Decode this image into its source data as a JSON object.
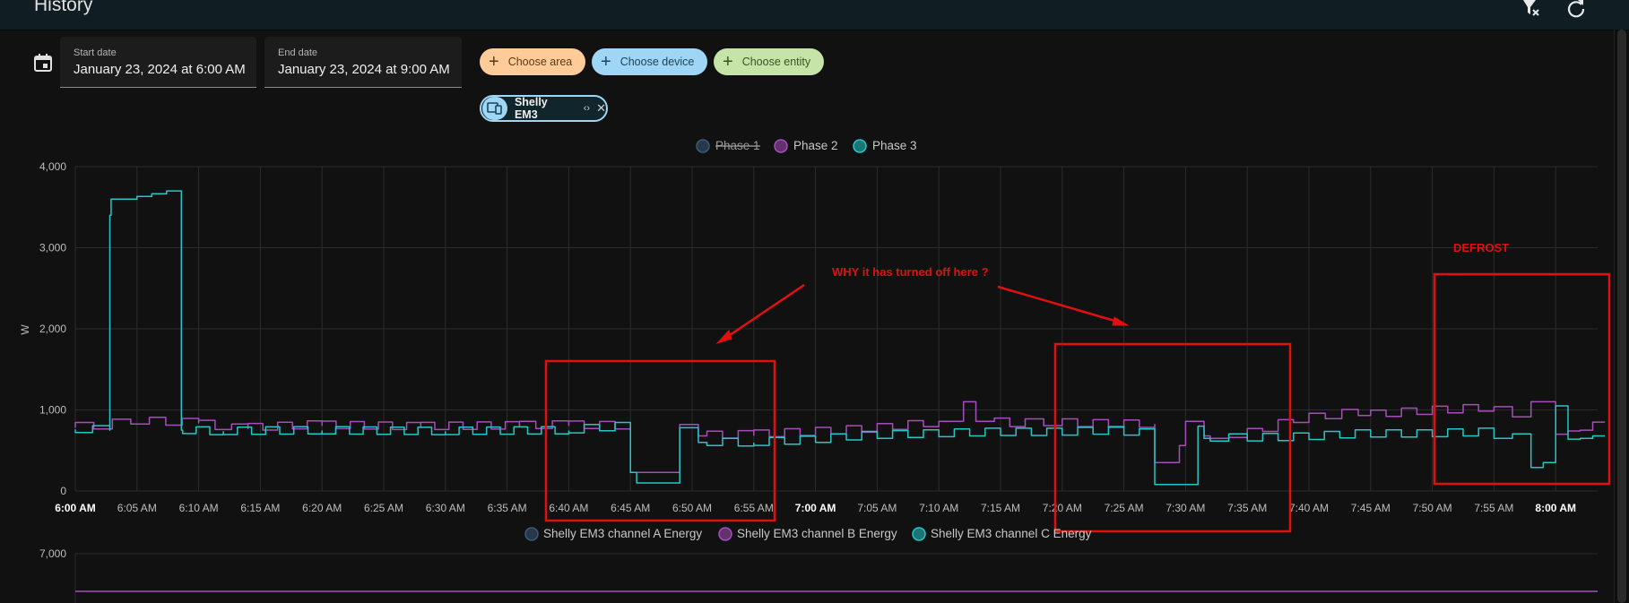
{
  "header": {
    "title": "History"
  },
  "toolbar": {
    "icons": [
      "filter-remove-icon",
      "refresh-icon"
    ]
  },
  "start_date": {
    "label": "Start date",
    "value": "January 23, 2024 at 6:00 AM"
  },
  "end_date": {
    "label": "End date",
    "value": "January 23, 2024 at 9:00 AM"
  },
  "pickers": {
    "area": "Choose area",
    "device": "Choose device",
    "entity": "Choose entity"
  },
  "selected_device": {
    "name": "Shelly EM3"
  },
  "colors": {
    "phase1": "#3b5a7a",
    "phase2": "#a64dbb",
    "phase3": "#26c6c6",
    "annotation": "#e01010",
    "grid": "#2c2c2c"
  },
  "chart_data": [
    {
      "type": "line",
      "legend": [
        {
          "name": "Phase 1",
          "hidden": true
        },
        {
          "name": "Phase 2",
          "hidden": false
        },
        {
          "name": "Phase 3",
          "hidden": false
        }
      ],
      "ylabel": "W",
      "ylim": [
        0,
        4000
      ],
      "yticks": [
        "0",
        "1,000",
        "2,000",
        "3,000",
        "4,000"
      ],
      "xticks": [
        "6:00 AM",
        "6:05 AM",
        "6:10 AM",
        "6:15 AM",
        "6:20 AM",
        "6:25 AM",
        "6:30 AM",
        "6:35 AM",
        "6:40 AM",
        "6:45 AM",
        "6:50 AM",
        "6:55 AM",
        "7:00 AM",
        "7:05 AM",
        "7:10 AM",
        "7:15 AM",
        "7:20 AM",
        "7:25 AM",
        "7:30 AM",
        "7:35 AM",
        "7:40 AM",
        "7:45 AM",
        "7:50 AM",
        "7:55 AM",
        "8:00 AM"
      ],
      "bold_ticks": [
        "6:00 AM",
        "7:00 AM",
        "8:00 AM"
      ],
      "xlim_minutes": [
        0,
        124
      ],
      "series": [
        {
          "name": "Phase 2",
          "color": "#a64dbb",
          "minutes": [
            0,
            3,
            6,
            10,
            14,
            20,
            28,
            36,
            40,
            45,
            45.5,
            49,
            50.5,
            51.2,
            55,
            60,
            65,
            70,
            72,
            73,
            74.5,
            77,
            80,
            85,
            87.5,
            88,
            89.5,
            90,
            91.5,
            92,
            93.5,
            95,
            100,
            104,
            105,
            110,
            115,
            118,
            120,
            121,
            122,
            123,
            124
          ],
          "values": [
            780,
            800,
            860,
            840,
            770,
            810,
            790,
            800,
            810,
            800,
            230,
            230,
            820,
            680,
            690,
            720,
            760,
            830,
            860,
            1100,
            860,
            830,
            840,
            820,
            820,
            350,
            350,
            560,
            860,
            680,
            650,
            660,
            880,
            950,
            930,
            980,
            1020,
            950,
            1100,
            700,
            740,
            750,
            850
          ]
        },
        {
          "name": "Phase 3",
          "color": "#26c6c6",
          "minutes": [
            0,
            2.8,
            2.9,
            5,
            8.6,
            8.7,
            12,
            20,
            30,
            40,
            45,
            45.5,
            46.5,
            49,
            50.5,
            51.2,
            55,
            60,
            65,
            70,
            75,
            80,
            85,
            87.5,
            88,
            91,
            91.5,
            92,
            95,
            100,
            105,
            110,
            115,
            118,
            119,
            120,
            121,
            122,
            123,
            124
          ],
          "values": [
            760,
            750,
            3400,
            3600,
            3700,
            750,
            730,
            740,
            730,
            740,
            790,
            230,
            100,
            100,
            780,
            600,
            590,
            620,
            680,
            700,
            720,
            720,
            740,
            710,
            80,
            80,
            800,
            650,
            650,
            660,
            700,
            700,
            720,
            650,
            290,
            350,
            1050,
            640,
            650,
            680
          ]
        }
      ],
      "annotations": [
        {
          "text": "WHY it has turned off here ?"
        },
        {
          "text": "DEFROST"
        }
      ]
    },
    {
      "type": "line",
      "legend": [
        {
          "name": "Shelly EM3 channel A Energy"
        },
        {
          "name": "Shelly EM3 channel B Energy"
        },
        {
          "name": "Shelly EM3 channel C Energy"
        }
      ],
      "yticks": [
        "7,000"
      ]
    }
  ]
}
